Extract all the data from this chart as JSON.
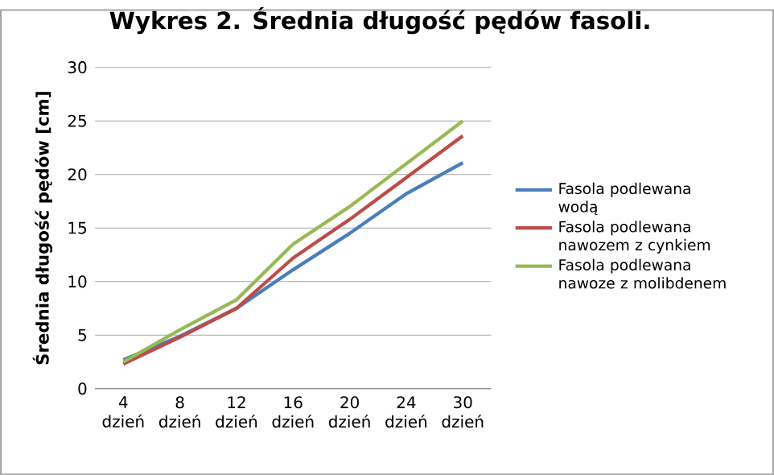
{
  "chart_data": {
    "type": "line",
    "title": "Wykres 2. Średnia długość pędów fasoli.",
    "ylabel": "Średnia długość pędów [cm]",
    "categories": [
      "4 dzień",
      "8 dzień",
      "12 dzień",
      "16 dzień",
      "20 dzień",
      "24 dzień",
      "30 dzień"
    ],
    "series": [
      {
        "name": "Fasola podlewana wodą",
        "color": "#4a7ebb",
        "values": [
          2.7,
          4.9,
          7.5,
          11.1,
          14.5,
          18.2,
          21.1
        ]
      },
      {
        "name": "Fasola podlewana nawozem z cynkiem",
        "color": "#be4b48",
        "values": [
          2.3,
          4.8,
          7.5,
          12.2,
          15.8,
          19.7,
          23.6
        ]
      },
      {
        "name": "Fasola podlewana nawoze z molibdenem",
        "color": "#98b954",
        "values": [
          2.5,
          5.5,
          8.3,
          13.5,
          17.0,
          21.0,
          25.0
        ]
      }
    ],
    "ylim": [
      0,
      30
    ],
    "yticks": [
      0,
      5,
      10,
      15,
      20,
      25,
      30
    ],
    "grid": "y",
    "legend": "right",
    "marker": "none"
  }
}
